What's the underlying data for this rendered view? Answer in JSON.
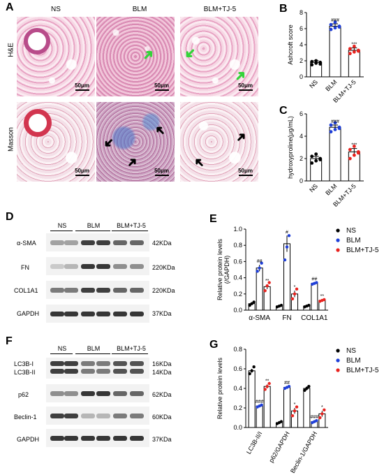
{
  "panels": {
    "A": "A",
    "B": "B",
    "C": "C",
    "D": "D",
    "E": "E",
    "F": "F",
    "G": "G"
  },
  "histology": {
    "columns": [
      "NS",
      "BLM",
      "BLM+TJ-5"
    ],
    "rows": [
      "H&E",
      "Masson"
    ],
    "scale": "50μm"
  },
  "chart_b": {
    "ylabel": "Ashcroft score",
    "categories": [
      "NS",
      "BLM",
      "BLM+TJ-5"
    ],
    "values": [
      1.8,
      6.3,
      3.3
    ],
    "errors": [
      0.2,
      0.3,
      0.3
    ],
    "points": [
      [
        1.5,
        1.7,
        1.8,
        1.9,
        2.0,
        1.6
      ],
      [
        5.9,
        6.1,
        6.3,
        6.5,
        6.8,
        6.2
      ],
      [
        2.9,
        3.1,
        3.3,
        3.5,
        3.8,
        3.2
      ]
    ],
    "ylim": [
      0,
      8
    ],
    "yticks": [
      "0",
      "2",
      "4",
      "6",
      "8"
    ],
    "sig": [
      "",
      "###",
      "***"
    ],
    "colors": [
      "#000000",
      "#1f3fd8",
      "#e8231f"
    ]
  },
  "chart_c": {
    "ylabel": "hydroxyproline(μg/mL)",
    "categories": [
      "NS",
      "BLM",
      "BLM+TJ-5"
    ],
    "values": [
      2.0,
      4.8,
      2.6
    ],
    "errors": [
      0.2,
      0.2,
      0.3
    ],
    "points": [
      [
        1.6,
        1.8,
        2.0,
        2.2,
        2.4,
        1.9
      ],
      [
        4.4,
        4.6,
        4.8,
        5.0,
        5.2,
        4.7
      ],
      [
        2.0,
        2.3,
        2.6,
        2.8,
        3.1,
        2.5
      ]
    ],
    "ylim": [
      0,
      6
    ],
    "yticks": [
      "0",
      "2",
      "4",
      "6"
    ],
    "sig": [
      "",
      "###",
      "***"
    ]
  },
  "blot_d": {
    "groups": [
      "NS",
      "BLM",
      "BLM+TJ-5"
    ],
    "proteins": [
      "α-SMA",
      "FN",
      "COL1A1",
      "GAPDH"
    ],
    "sizes": [
      "42KDa",
      "220KDa",
      "220KDa",
      "37KDa"
    ]
  },
  "chart_data": [
    {
      "type": "bar",
      "title": "",
      "ylabel": "Ashcroft score",
      "categories": [
        "NS",
        "BLM",
        "BLM+TJ-5"
      ],
      "values": [
        1.8,
        6.3,
        3.3
      ],
      "ylim": [
        0,
        8
      ]
    },
    {
      "type": "bar",
      "title": "",
      "ylabel": "hydroxyproline(μg/mL)",
      "categories": [
        "NS",
        "BLM",
        "BLM+TJ-5"
      ],
      "values": [
        2.0,
        4.8,
        2.6
      ],
      "ylim": [
        0,
        6
      ]
    },
    {
      "type": "bar",
      "title": "",
      "ylabel": "Relative protein levels (/GAPDH)",
      "categories": [
        "α-SMA",
        "FN",
        "COL1A1"
      ],
      "series": [
        {
          "name": "NS",
          "values": [
            0.08,
            0.05,
            0.05
          ]
        },
        {
          "name": "BLM",
          "values": [
            0.52,
            0.82,
            0.33
          ]
        },
        {
          "name": "BLM+TJ-5",
          "values": [
            0.29,
            0.2,
            0.12
          ]
        }
      ],
      "ylim": [
        0,
        1.0
      ]
    },
    {
      "type": "bar",
      "title": "",
      "ylabel": "Relative protein levels",
      "categories": [
        "LC3B-II/I",
        "p62/GAPDH",
        "Beclin-1/GAPDH"
      ],
      "series": [
        {
          "name": "NS",
          "values": [
            0.58,
            0.05,
            0.4
          ]
        },
        {
          "name": "BLM",
          "values": [
            0.22,
            0.41,
            0.06
          ]
        },
        {
          "name": "BLM+TJ-5",
          "values": [
            0.42,
            0.17,
            0.14
          ]
        }
      ],
      "ylim": [
        0,
        0.8
      ]
    }
  ],
  "chart_e": {
    "ylabel1": "Relative protein levels",
    "ylabel2": "(/GAPDH)",
    "categories": [
      "α-SMA",
      "FN",
      "COL1A1"
    ],
    "ylim": [
      0,
      1.0
    ],
    "yticks": [
      "0.0",
      "0.2",
      "0.4",
      "0.6",
      "0.8",
      "1.0"
    ],
    "series": [
      {
        "name": "NS",
        "values": [
          0.08,
          0.05,
          0.05
        ],
        "err": [
          0.01,
          0.01,
          0.01
        ],
        "pts": [
          [
            0.06,
            0.08,
            0.1
          ],
          [
            0.04,
            0.05,
            0.06
          ],
          [
            0.04,
            0.05,
            0.06
          ]
        ]
      },
      {
        "name": "BLM",
        "values": [
          0.52,
          0.82,
          0.33
        ],
        "err": [
          0.04,
          0.1,
          0.01
        ],
        "pts": [
          [
            0.48,
            0.52,
            0.58
          ],
          [
            0.62,
            0.78,
            0.92
          ],
          [
            0.32,
            0.33,
            0.34
          ]
        ]
      },
      {
        "name": "BLM+TJ-5",
        "values": [
          0.29,
          0.2,
          0.12
        ],
        "err": [
          0.03,
          0.04,
          0.01
        ],
        "pts": [
          [
            0.24,
            0.3,
            0.34
          ],
          [
            0.14,
            0.2,
            0.26
          ],
          [
            0.11,
            0.12,
            0.13
          ]
        ]
      }
    ],
    "sig_blm": [
      "##",
      "#",
      "##"
    ],
    "sig_tj": [
      "**",
      "*",
      "**"
    ]
  },
  "blot_f": {
    "groups": [
      "NS",
      "BLM",
      "BLM+TJ-5"
    ],
    "proteins": [
      "LC3B-I",
      "LC3B-II",
      "p62",
      "Beclin-1",
      "GAPDH"
    ],
    "sizes": [
      "16KDa",
      "14KDa",
      "62KDa",
      "60KDa",
      "37KDa"
    ]
  },
  "chart_g": {
    "ylabel": "Relative protein levels",
    "categories": [
      "LC3B-II/I",
      "p62/GAPDH",
      "Beclin-1/GAPDH"
    ],
    "ylim": [
      0,
      0.8
    ],
    "yticks": [
      "0.0",
      "0.2",
      "0.4",
      "0.6",
      "0.8"
    ],
    "series": [
      {
        "name": "NS",
        "values": [
          0.58,
          0.05,
          0.4
        ],
        "err": [
          0.02,
          0.01,
          0.02
        ],
        "pts": [
          [
            0.55,
            0.58,
            0.62
          ],
          [
            0.04,
            0.05,
            0.06
          ],
          [
            0.38,
            0.4,
            0.42
          ]
        ]
      },
      {
        "name": "BLM",
        "values": [
          0.22,
          0.41,
          0.06
        ],
        "err": [
          0.01,
          0.01,
          0.01
        ],
        "pts": [
          [
            0.21,
            0.22,
            0.23
          ],
          [
            0.4,
            0.41,
            0.42
          ],
          [
            0.05,
            0.06,
            0.07
          ]
        ]
      },
      {
        "name": "BLM+TJ-5",
        "values": [
          0.42,
          0.17,
          0.14
        ],
        "err": [
          0.02,
          0.03,
          0.03
        ],
        "pts": [
          [
            0.39,
            0.42,
            0.45
          ],
          [
            0.12,
            0.17,
            0.21
          ],
          [
            0.1,
            0.14,
            0.18
          ]
        ]
      }
    ],
    "sig_blm": [
      "###",
      "##",
      "###"
    ],
    "sig_tj": [
      "**",
      "*",
      "*"
    ]
  }
}
